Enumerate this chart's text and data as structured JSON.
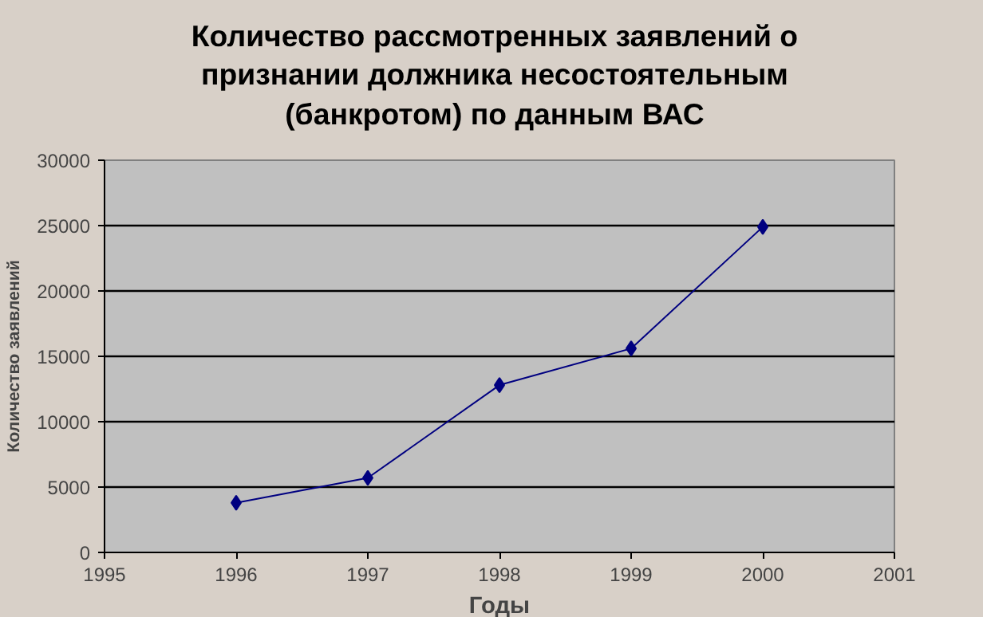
{
  "chart_data": {
    "type": "line",
    "title": "Количество рассмотренных заявлений о признании должника несостоятельным (банкротом) по данным ВАС",
    "xlabel": "Годы",
    "ylabel": "Количество заявлений",
    "x": [
      1996,
      1997,
      1998,
      1999,
      2000
    ],
    "series": [
      {
        "color": "#000080",
        "values": [
          3800,
          5700,
          12800,
          15600,
          24900
        ]
      }
    ],
    "xlim": [
      1995,
      2001
    ],
    "xticks": [
      1995,
      1996,
      1997,
      1998,
      1999,
      2000,
      2001
    ],
    "ylim": [
      0,
      30000
    ],
    "yticks": [
      0,
      5000,
      10000,
      15000,
      20000,
      25000,
      30000
    ],
    "grid": "y",
    "marker": "diamond",
    "line_style": "solid"
  }
}
